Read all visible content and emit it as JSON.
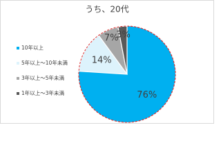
{
  "chart_data": {
    "type": "pie",
    "title": "うち、20代",
    "categories": [
      "10年以上",
      "5年以上～10年未満",
      "3年以上～5年未満",
      "1年以上～3年未満"
    ],
    "values": [
      76,
      14,
      7,
      3
    ],
    "value_labels": [
      "76%",
      "14%",
      "7%",
      "3%"
    ],
    "colors": [
      "#00b0f0",
      "#ddf3fc",
      "#a6a6a6",
      "#595959"
    ],
    "legend": "left"
  }
}
